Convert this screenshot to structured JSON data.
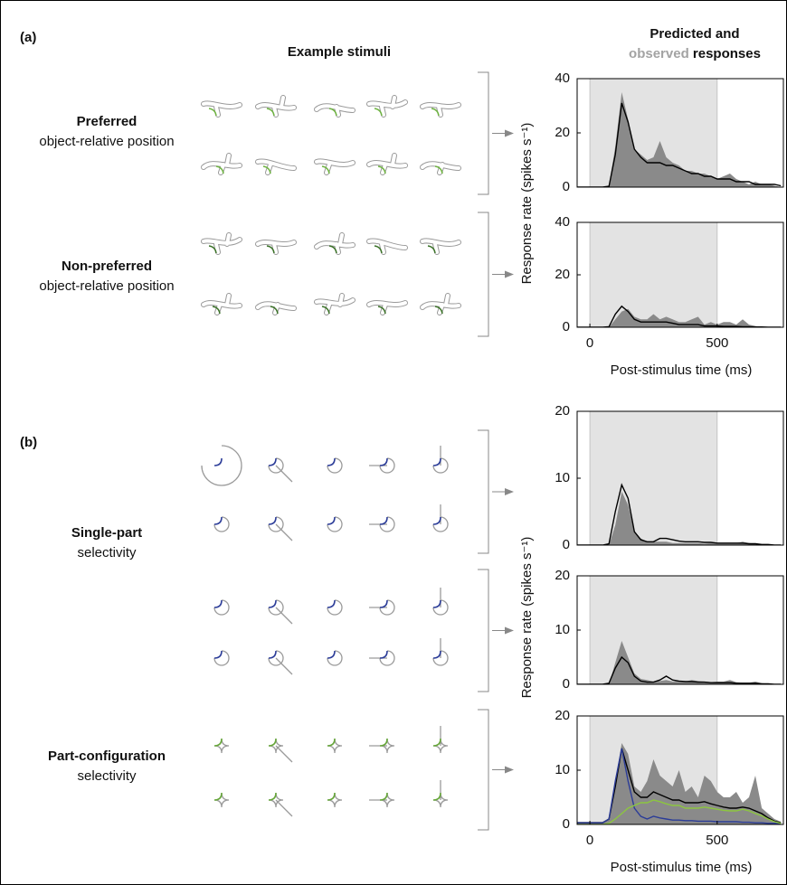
{
  "figure": {
    "panels": [
      {
        "label": "(a)",
        "heading": "Example stimuli",
        "response_heading": [
          "Predicted and",
          "observed",
          "responses"
        ],
        "groups": [
          {
            "title": "Preferred",
            "subtitle": "object-relative position",
            "color": "#6db33f"
          },
          {
            "title": "Non-preferred",
            "subtitle": "object-relative position",
            "color": "#3a7227"
          }
        ],
        "y_label": "Response rate (spikes s⁻¹)",
        "x_label": "Post-stimulus time (ms)"
      },
      {
        "label": "(b)",
        "groups": [
          {
            "title": "Single-part",
            "subtitle": "selectivity",
            "color": "#2b3c98"
          },
          {
            "title": "Part-configuration",
            "subtitle": "selectivity",
            "color": "#67a83a"
          }
        ],
        "y_label": "Response rate (spikes s⁻¹)",
        "x_label": "Post-stimulus time (ms)"
      }
    ],
    "observed_color": "#a3a3a3"
  },
  "chart_data": [
    {
      "type": "line",
      "x": [
        -50,
        -25,
        0,
        25,
        50,
        75,
        100,
        125,
        150,
        175,
        200,
        225,
        250,
        275,
        300,
        325,
        350,
        375,
        400,
        425,
        450,
        475,
        500,
        525,
        550,
        575,
        600,
        625,
        650,
        675,
        700,
        725,
        750
      ],
      "xlim": [
        -50,
        760
      ],
      "ylim": [
        0,
        40
      ],
      "yticks": [
        0,
        20,
        40
      ],
      "stimulus_window": [
        0,
        500
      ],
      "series": [
        {
          "style": "area",
          "color": "#8a8a8a",
          "values": [
            0,
            0,
            0,
            0,
            0,
            0.5,
            15,
            35,
            25,
            14,
            12,
            10,
            11,
            17,
            11,
            9,
            8,
            6,
            6,
            5,
            5,
            4,
            3,
            4,
            5,
            3,
            2,
            1,
            2,
            1,
            1,
            0.5,
            0
          ]
        },
        {
          "style": "line",
          "color": "#000000",
          "values": [
            0,
            0,
            0,
            0,
            0,
            0.3,
            12,
            31,
            24,
            14,
            11,
            9,
            9,
            9,
            8,
            8,
            7,
            6,
            5,
            5,
            4,
            4,
            3,
            3,
            3,
            2,
            2,
            2,
            1,
            1,
            1,
            1,
            0.5
          ]
        }
      ]
    },
    {
      "type": "line",
      "x": [
        -50,
        -25,
        0,
        25,
        50,
        75,
        100,
        125,
        150,
        175,
        200,
        225,
        250,
        275,
        300,
        325,
        350,
        375,
        400,
        425,
        450,
        475,
        500,
        525,
        550,
        575,
        600,
        625,
        650,
        675,
        700,
        725,
        750
      ],
      "xlim": [
        -50,
        760
      ],
      "ylim": [
        0,
        40
      ],
      "yticks": [
        0,
        20,
        40
      ],
      "xticks": [
        0,
        500
      ],
      "stimulus_window": [
        0,
        500
      ],
      "series": [
        {
          "style": "area",
          "color": "#8a8a8a",
          "values": [
            0,
            0,
            0,
            0,
            0,
            0,
            3,
            6,
            7,
            4,
            3,
            3,
            5,
            3,
            4,
            3,
            2,
            2,
            3,
            4,
            1,
            2,
            1,
            2,
            2,
            1,
            3,
            1,
            0.5,
            0,
            0,
            0,
            0
          ]
        },
        {
          "style": "line",
          "color": "#000000",
          "values": [
            0,
            0,
            0,
            0,
            0,
            0.2,
            5,
            8,
            6,
            3,
            2,
            2,
            2,
            2,
            2,
            1.5,
            1,
            1,
            1,
            1,
            0.5,
            0.5,
            0.5,
            0.3,
            0.3,
            0.3,
            0.2,
            0.2,
            0.1,
            0.1,
            0,
            0,
            0
          ]
        }
      ]
    },
    {
      "type": "line",
      "x": [
        -50,
        -25,
        0,
        25,
        50,
        75,
        100,
        125,
        150,
        175,
        200,
        225,
        250,
        275,
        300,
        325,
        350,
        375,
        400,
        425,
        450,
        475,
        500,
        525,
        550,
        575,
        600,
        625,
        650,
        675,
        700,
        725,
        750
      ],
      "xlim": [
        -50,
        760
      ],
      "ylim": [
        0,
        20
      ],
      "yticks": [
        0,
        10,
        20
      ],
      "stimulus_window": [
        0,
        500
      ],
      "series": [
        {
          "style": "area",
          "color": "#8a8a8a",
          "values": [
            0,
            0,
            0,
            0,
            0,
            0,
            3,
            8,
            6,
            2,
            1,
            0.5,
            0.5,
            0.5,
            0.5,
            0.3,
            0.3,
            0.3,
            0.3,
            0.3,
            0.2,
            0.3,
            0.3,
            0.3,
            0.2,
            0.3,
            0.5,
            0.3,
            0.2,
            0.1,
            0,
            0,
            0
          ]
        },
        {
          "style": "line",
          "color": "#000000",
          "values": [
            0,
            0,
            0,
            0,
            0,
            0.2,
            5,
            9,
            7,
            2,
            0.8,
            0.5,
            0.5,
            1,
            1,
            0.8,
            0.6,
            0.5,
            0.5,
            0.5,
            0.4,
            0.4,
            0.3,
            0.3,
            0.3,
            0.3,
            0.3,
            0.2,
            0.2,
            0.1,
            0.1,
            0,
            0
          ]
        }
      ]
    },
    {
      "type": "line",
      "x": [
        -50,
        -25,
        0,
        25,
        50,
        75,
        100,
        125,
        150,
        175,
        200,
        225,
        250,
        275,
        300,
        325,
        350,
        375,
        400,
        425,
        450,
        475,
        500,
        525,
        550,
        575,
        600,
        625,
        650,
        675,
        700,
        725,
        750
      ],
      "xlim": [
        -50,
        760
      ],
      "ylim": [
        0,
        20
      ],
      "yticks": [
        0,
        10,
        20
      ],
      "stimulus_window": [
        0,
        500
      ],
      "series": [
        {
          "style": "area",
          "color": "#8a8a8a",
          "values": [
            0,
            0,
            0,
            0,
            0,
            0,
            4,
            8,
            5,
            2,
            1,
            0.8,
            0.5,
            0.6,
            0.8,
            0.5,
            0.6,
            0.5,
            0.8,
            0.6,
            0.5,
            0.4,
            0.5,
            0.5,
            0.8,
            0.4,
            0.3,
            0.3,
            0.5,
            0.2,
            0.1,
            0,
            0
          ]
        },
        {
          "style": "line",
          "color": "#000000",
          "values": [
            0,
            0,
            0,
            0,
            0,
            0.2,
            3,
            5,
            4,
            1.5,
            0.6,
            0.4,
            0.4,
            0.8,
            1.5,
            0.8,
            0.6,
            0.5,
            0.5,
            0.4,
            0.4,
            0.3,
            0.3,
            0.3,
            0.3,
            0.2,
            0.2,
            0.2,
            0.2,
            0.1,
            0.1,
            0,
            0
          ]
        }
      ]
    },
    {
      "type": "line",
      "x": [
        -50,
        -25,
        0,
        25,
        50,
        75,
        100,
        125,
        150,
        175,
        200,
        225,
        250,
        275,
        300,
        325,
        350,
        375,
        400,
        425,
        450,
        475,
        500,
        525,
        550,
        575,
        600,
        625,
        650,
        675,
        700,
        725,
        750
      ],
      "xlim": [
        -50,
        760
      ],
      "ylim": [
        0,
        20
      ],
      "yticks": [
        0,
        10,
        20
      ],
      "xticks": [
        0,
        500
      ],
      "stimulus_window": [
        0,
        500
      ],
      "series": [
        {
          "style": "area",
          "color": "#8a8a8a",
          "values": [
            0.5,
            0.5,
            0.5,
            0.5,
            0.5,
            1,
            8,
            15,
            13,
            7,
            6,
            8,
            12,
            9,
            8,
            7,
            10,
            6,
            7,
            5,
            9,
            8,
            6,
            5,
            5,
            6,
            4,
            5,
            9,
            3,
            2,
            1,
            0.5
          ]
        },
        {
          "style": "line",
          "color": "#000000",
          "values": [
            0.3,
            0.3,
            0.3,
            0.3,
            0.3,
            1,
            7,
            14,
            10,
            6,
            5,
            5,
            6,
            5.5,
            5,
            4.5,
            4.5,
            4,
            4,
            4,
            4.2,
            3.8,
            3.5,
            3.2,
            3,
            3,
            3.2,
            3,
            2.5,
            2,
            1.2,
            0.6,
            0.3
          ]
        },
        {
          "style": "line",
          "color": "#2b3c98",
          "values": [
            0.3,
            0.3,
            0.3,
            0.3,
            0.3,
            1,
            8,
            14,
            8,
            3,
            1.5,
            1,
            1.5,
            1.2,
            1,
            0.8,
            0.8,
            0.7,
            0.7,
            0.6,
            0.6,
            0.6,
            0.5,
            0.5,
            0.5,
            0.5,
            0.4,
            0.4,
            0.3,
            0.3,
            0.2,
            0.2,
            0.2
          ]
        },
        {
          "style": "line",
          "color": "#8cc63f",
          "values": [
            0,
            0,
            0,
            0,
            0,
            0.2,
            1,
            2,
            3,
            3.5,
            4,
            4,
            4.5,
            4.2,
            3.8,
            3.5,
            3.5,
            3,
            3,
            3,
            3.2,
            3,
            2.8,
            2.6,
            2.5,
            2.5,
            2.8,
            2.5,
            2,
            1.6,
            1,
            0.5,
            0.2
          ]
        }
      ]
    }
  ]
}
